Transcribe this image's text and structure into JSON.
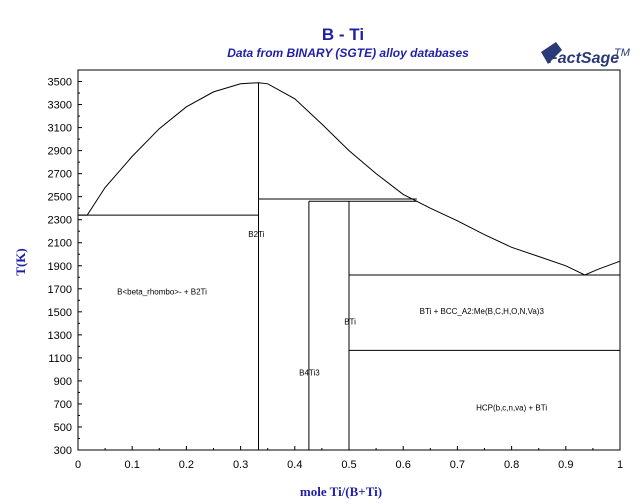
{
  "chart_data": {
    "type": "line",
    "title": "B - Ti",
    "subtitle": "Data from BINARY (SGTE) alloy databases",
    "xlabel": "mole Ti/(B+Ti)",
    "ylabel": "T(K)",
    "xlim": [
      0,
      1
    ],
    "ylim": [
      300,
      3600
    ],
    "x_ticks": [
      "0",
      "0.1",
      "0.2",
      "0.3",
      "0.4",
      "0.5",
      "0.6",
      "0.7",
      "0.8",
      "0.9",
      "1"
    ],
    "y_ticks": [
      "300",
      "500",
      "700",
      "900",
      "1100",
      "1300",
      "1500",
      "1700",
      "1900",
      "2100",
      "2300",
      "2500",
      "2700",
      "2900",
      "3100",
      "3300",
      "3500"
    ],
    "grid": false,
    "series": [
      {
        "points": [
          [
            0,
            2340
          ],
          [
            0.017,
            2340
          ],
          [
            0.05,
            2580
          ],
          [
            0.1,
            2850
          ],
          [
            0.15,
            3090
          ],
          [
            0.2,
            3280
          ],
          [
            0.25,
            3410
          ],
          [
            0.3,
            3480
          ],
          [
            0.333,
            3490
          ],
          [
            0.35,
            3480
          ],
          [
            0.4,
            3350
          ],
          [
            0.45,
            3130
          ],
          [
            0.5,
            2900
          ],
          [
            0.55,
            2700
          ],
          [
            0.6,
            2520
          ],
          [
            0.625,
            2460
          ],
          [
            0.65,
            2400
          ],
          [
            0.7,
            2290
          ],
          [
            0.75,
            2170
          ],
          [
            0.8,
            2060
          ],
          [
            0.85,
            1980
          ],
          [
            0.9,
            1900
          ],
          [
            0.935,
            1820
          ],
          [
            0.96,
            1870
          ],
          [
            1,
            1940
          ]
        ]
      },
      {
        "points": [
          [
            0,
            2340
          ],
          [
            0.333,
            2340
          ]
        ]
      },
      {
        "points": [
          [
            0.333,
            300
          ],
          [
            0.333,
            3490
          ]
        ]
      },
      {
        "points": [
          [
            0.333,
            2480
          ],
          [
            0.625,
            2480
          ]
        ]
      },
      {
        "points": [
          [
            0.426,
            2460
          ],
          [
            0.625,
            2460
          ]
        ]
      },
      {
        "points": [
          [
            0.426,
            300
          ],
          [
            0.426,
            2460
          ]
        ]
      },
      {
        "points": [
          [
            0.5,
            300
          ],
          [
            0.5,
            2460
          ]
        ]
      },
      {
        "points": [
          [
            0.5,
            1820
          ],
          [
            1,
            1820
          ]
        ]
      },
      {
        "points": [
          [
            0.5,
            1165
          ],
          [
            1,
            1165
          ]
        ]
      },
      {
        "points": [
          [
            1,
            300
          ],
          [
            1,
            1940
          ]
        ]
      }
    ],
    "region_labels": [
      {
        "text": "B2Ti",
        "x": 0.329,
        "y": 2150
      },
      {
        "text": "B<beta_rhombo>- + B2Ti",
        "x": 0.155,
        "y": 1650
      },
      {
        "text": "BTi",
        "x": 0.502,
        "y": 1390
      },
      {
        "text": "BTi + BCC_A2:Me(B,C,H,O,N,Va)3",
        "x": 0.745,
        "y": 1480
      },
      {
        "text": "B4Ti3",
        "x": 0.427,
        "y": 945
      },
      {
        "text": "HCP(b,c,n,va) + BTi",
        "x": 0.8,
        "y": 645
      }
    ]
  },
  "logo": {
    "text": "FactSage",
    "mark": "TM"
  }
}
